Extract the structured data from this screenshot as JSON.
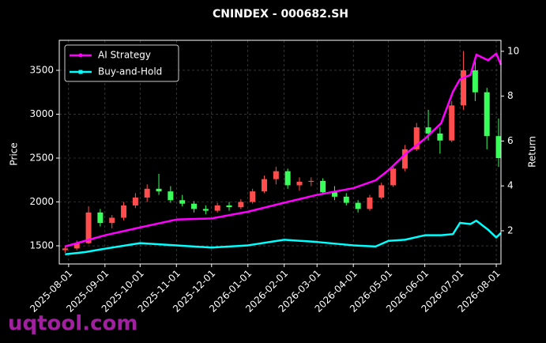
{
  "chart_data": {
    "type": "candlestick",
    "title": "CNINDEX - 000682.SH",
    "ylabel": "Price",
    "y2label": "Return",
    "watermark": "uqtool.com",
    "watermark_color": "#a020a0",
    "up_color": "#ff4d4d",
    "down_color": "#39ff5a",
    "grid": true,
    "legend": "upper left",
    "xlim": [
      "2025-07-24",
      "2026-08-05"
    ],
    "xticks": [
      "2025-08-01",
      "2025-09-01",
      "2025-10-01",
      "2025-11-01",
      "2025-12-01",
      "2026-01-01",
      "2026-02-01",
      "2026-03-01",
      "2026-04-01",
      "2026-05-01",
      "2026-06-01",
      "2026-07-01",
      "2026-08-01"
    ],
    "ylim": [
      1293,
      3842
    ],
    "yticks": [
      1500,
      2000,
      2500,
      3000,
      3500
    ],
    "y2lim": [
      0.52,
      10.49
    ],
    "y2ticks": [
      2,
      4,
      6,
      8,
      10
    ],
    "candles": {
      "x": [
        "2025-07-29",
        "2025-08-08",
        "2025-08-18",
        "2025-08-28",
        "2025-09-07",
        "2025-09-17",
        "2025-09-27",
        "2025-10-07",
        "2025-10-17",
        "2025-10-27",
        "2025-11-06",
        "2025-11-16",
        "2025-11-26",
        "2025-12-06",
        "2025-12-16",
        "2025-12-26",
        "2026-01-05",
        "2026-01-15",
        "2026-01-25",
        "2026-02-04",
        "2026-02-14",
        "2026-02-24",
        "2026-03-06",
        "2026-03-16",
        "2026-03-26",
        "2026-04-05",
        "2026-04-15",
        "2026-04-25",
        "2026-05-05",
        "2026-05-15",
        "2026-05-25",
        "2026-06-04",
        "2026-06-14",
        "2026-06-24",
        "2026-07-04",
        "2026-07-14",
        "2026-07-24",
        "2026-08-03"
      ],
      "open": [
        1450,
        1470,
        1530,
        1880,
        1760,
        1820,
        1960,
        2050,
        2150,
        2120,
        2020,
        1980,
        1920,
        1900,
        1960,
        1940,
        2000,
        2120,
        2260,
        2350,
        2190,
        2230,
        2240,
        2110,
        2060,
        1990,
        1920,
        2050,
        2190,
        2380,
        2600,
        2850,
        2780,
        2700,
        3100,
        3500,
        3250,
        2750
      ],
      "high": [
        1490,
        1560,
        1950,
        1920,
        1850,
        2000,
        2100,
        2200,
        2320,
        2180,
        2080,
        2010,
        1960,
        1990,
        2000,
        2030,
        2150,
        2300,
        2400,
        2380,
        2280,
        2280,
        2270,
        2180,
        2100,
        2020,
        2080,
        2220,
        2420,
        2650,
        2900,
        3050,
        2850,
        3150,
        3720,
        3650,
        3300,
        2950
      ],
      "low": [
        1420,
        1450,
        1520,
        1720,
        1700,
        1790,
        1930,
        2000,
        2080,
        1990,
        1950,
        1880,
        1860,
        1880,
        1900,
        1920,
        1980,
        2100,
        2200,
        2150,
        2130,
        2180,
        2080,
        2020,
        1960,
        1880,
        1900,
        2030,
        2170,
        2350,
        2580,
        2700,
        2550,
        2680,
        3050,
        3150,
        2600,
        2400
      ],
      "close": [
        1470,
        1530,
        1880,
        1760,
        1820,
        1960,
        2050,
        2150,
        2120,
        2020,
        1980,
        1920,
        1900,
        1960,
        1940,
        2000,
        2120,
        2260,
        2350,
        2190,
        2230,
        2240,
        2110,
        2060,
        1990,
        1920,
        2050,
        2190,
        2380,
        2600,
        2850,
        2780,
        2700,
        3100,
        3500,
        3250,
        2750,
        2500
      ]
    },
    "line_x": [
      "2025-07-29",
      "2025-08-15",
      "2025-09-01",
      "2025-10-01",
      "2025-11-01",
      "2025-12-01",
      "2026-01-01",
      "2026-02-01",
      "2026-03-01",
      "2026-04-01",
      "2026-04-20",
      "2026-05-01",
      "2026-05-15",
      "2026-06-01",
      "2026-06-15",
      "2026-06-25",
      "2026-07-01",
      "2026-07-10",
      "2026-07-15",
      "2026-07-25",
      "2026-08-01",
      "2026-08-05"
    ],
    "series": [
      {
        "name": "AI Strategy",
        "color": "#ff00ff",
        "axis": "y2",
        "values": [
          1.3,
          1.55,
          1.8,
          2.15,
          2.5,
          2.55,
          2.85,
          3.25,
          3.6,
          3.9,
          4.25,
          4.7,
          5.4,
          6.1,
          6.8,
          8.2,
          8.75,
          8.95,
          9.85,
          9.6,
          9.9,
          9.4
        ]
      },
      {
        "name": "Buy-and-Hold",
        "color": "#00ffff",
        "axis": "y2",
        "values": [
          0.95,
          1.05,
          1.2,
          1.45,
          1.35,
          1.25,
          1.35,
          1.6,
          1.5,
          1.35,
          1.3,
          1.55,
          1.6,
          1.8,
          1.8,
          1.85,
          2.35,
          2.3,
          2.45,
          2.05,
          1.7,
          1.9
        ]
      }
    ]
  }
}
